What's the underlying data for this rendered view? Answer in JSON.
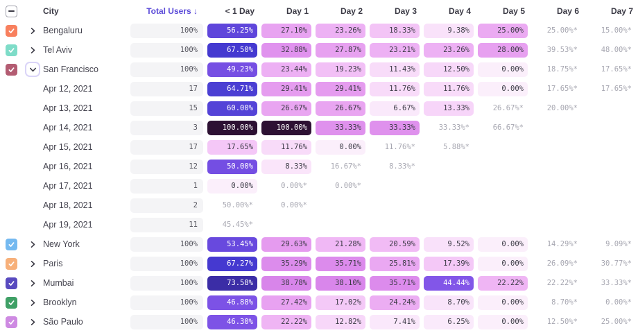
{
  "header": {
    "city": "City",
    "total_users": "Total Users ↓",
    "days": [
      "< 1 Day",
      "Day 1",
      "Day 2",
      "Day 3",
      "Day 4",
      "Day 5",
      "Day 6",
      "Day 7"
    ]
  },
  "colors": {
    "header_accent": "#5A4AD8",
    "star_text": "#A7A7B1",
    "total_box_bg": "#F4F4F6"
  },
  "rows": [
    {
      "id": "bengaluru",
      "kind": "city",
      "label": "Bengaluru",
      "checkbox": "#F8805E",
      "chevron": "right",
      "total": "100%",
      "cells": [
        {
          "v": "56.25%",
          "bg": "#5F46DB",
          "fg": "#FFFFFF"
        },
        {
          "v": "27.10%",
          "bg": "#E8A3F1"
        },
        {
          "v": "23.26%",
          "bg": "#EDB1F4"
        },
        {
          "v": "18.33%",
          "bg": "#F3C4F6"
        },
        {
          "v": "9.38%",
          "bg": "#F9E2FA"
        },
        {
          "v": "25.00%",
          "bg": "#EBAAF2"
        },
        {
          "v": "25.00%*",
          "star": true
        },
        {
          "v": "15.00%*",
          "star": true
        }
      ]
    },
    {
      "id": "tel-aviv",
      "kind": "city",
      "label": "Tel Aviv",
      "checkbox": "#7EDCC8",
      "chevron": "right",
      "total": "100%",
      "cells": [
        {
          "v": "67.50%",
          "bg": "#4439D0",
          "fg": "#FFFFFF"
        },
        {
          "v": "32.88%",
          "bg": "#E092EE"
        },
        {
          "v": "27.87%",
          "bg": "#E7A1F0"
        },
        {
          "v": "23.21%",
          "bg": "#EDB1F4"
        },
        {
          "v": "23.26%",
          "bg": "#EDB1F4"
        },
        {
          "v": "28.00%",
          "bg": "#E7A0F0"
        },
        {
          "v": "39.53%*",
          "star": true
        },
        {
          "v": "48.00%*",
          "star": true
        }
      ]
    },
    {
      "id": "san-francisco",
      "kind": "city",
      "label": "San Francisco",
      "checkbox": "#B35C72",
      "chevron": "down",
      "focus": true,
      "total": "100%",
      "cells": [
        {
          "v": "49.23%",
          "bg": "#764FE3",
          "fg": "#FFFFFF"
        },
        {
          "v": "23.44%",
          "bg": "#EDB0F4"
        },
        {
          "v": "19.23%",
          "bg": "#F2C0F6"
        },
        {
          "v": "11.43%",
          "bg": "#F8DCF9"
        },
        {
          "v": "12.50%",
          "bg": "#F7D8F9"
        },
        {
          "v": "0.00%",
          "bg": "#FBEFFB"
        },
        {
          "v": "18.75%*",
          "star": true
        },
        {
          "v": "17.65%*",
          "star": true
        }
      ]
    },
    {
      "id": "apr-12-2021",
      "kind": "date",
      "label": "Apr 12, 2021",
      "total": "17",
      "cells": [
        {
          "v": "64.71%",
          "bg": "#4B3FD3",
          "fg": "#FFFFFF"
        },
        {
          "v": "29.41%",
          "bg": "#E59CEF"
        },
        {
          "v": "29.41%",
          "bg": "#E59CEF"
        },
        {
          "v": "11.76%",
          "bg": "#F8DBF9"
        },
        {
          "v": "11.76%",
          "bg": "#F8DBF9"
        },
        {
          "v": "0.00%",
          "bg": "#FBEFFB"
        },
        {
          "v": "17.65%*",
          "star": true
        },
        {
          "v": "17.65%*",
          "star": true
        }
      ]
    },
    {
      "id": "apr-13-2021",
      "kind": "date",
      "label": "Apr 13, 2021",
      "total": "15",
      "cells": [
        {
          "v": "60.00%",
          "bg": "#5443D7",
          "fg": "#FFFFFF"
        },
        {
          "v": "26.67%",
          "bg": "#E9A5F1"
        },
        {
          "v": "26.67%",
          "bg": "#E9A5F1"
        },
        {
          "v": "6.67%",
          "bg": "#FAE9FB"
        },
        {
          "v": "13.33%",
          "bg": "#F7D5F9"
        },
        {
          "v": "26.67%*",
          "star": true
        },
        {
          "v": "20.00%*",
          "star": true
        },
        null
      ]
    },
    {
      "id": "apr-14-2021",
      "kind": "date",
      "label": "Apr 14, 2021",
      "total": "3",
      "cells": [
        {
          "v": "100.00%",
          "bg": "#2D1133",
          "fg": "#FFFFFF"
        },
        {
          "v": "100.00%",
          "bg": "#2D1133",
          "fg": "#FFFFFF"
        },
        {
          "v": "33.33%",
          "bg": "#DF91ED"
        },
        {
          "v": "33.33%",
          "bg": "#DF91ED"
        },
        {
          "v": "33.33%*",
          "star": true
        },
        {
          "v": "66.67%*",
          "star": true
        },
        null,
        null
      ]
    },
    {
      "id": "apr-15-2021",
      "kind": "date",
      "label": "Apr 15, 2021",
      "total": "17",
      "cells": [
        {
          "v": "17.65%",
          "bg": "#F4C7F7"
        },
        {
          "v": "11.76%",
          "bg": "#F8DBF9"
        },
        {
          "v": "0.00%",
          "bg": "#FBEFFB"
        },
        {
          "v": "11.76%*",
          "star": true
        },
        {
          "v": "5.88%*",
          "star": true
        },
        null,
        null,
        null
      ]
    },
    {
      "id": "apr-16-2021",
      "kind": "date",
      "label": "Apr 16, 2021",
      "total": "12",
      "cells": [
        {
          "v": "50.00%",
          "bg": "#744EE3",
          "fg": "#FFFFFF"
        },
        {
          "v": "8.33%",
          "bg": "#FAE5FA"
        },
        {
          "v": "16.67%*",
          "star": true
        },
        {
          "v": "8.33%*",
          "star": true
        },
        null,
        null,
        null,
        null
      ]
    },
    {
      "id": "apr-17-2021",
      "kind": "date",
      "label": "Apr 17, 2021",
      "total": "1",
      "cells": [
        {
          "v": "0.00%",
          "bg": "#FBEFFB"
        },
        {
          "v": "0.00%*",
          "star": true
        },
        {
          "v": "0.00%*",
          "star": true
        },
        null,
        null,
        null,
        null,
        null
      ]
    },
    {
      "id": "apr-18-2021",
      "kind": "date",
      "label": "Apr 18, 2021",
      "total": "2",
      "cells": [
        {
          "v": "50.00%*",
          "star": true
        },
        {
          "v": "0.00%*",
          "star": true
        },
        null,
        null,
        null,
        null,
        null,
        null
      ]
    },
    {
      "id": "apr-19-2021",
      "kind": "date",
      "label": "Apr 19, 2021",
      "total": "11",
      "cells": [
        {
          "v": "45.45%*",
          "star": true
        },
        null,
        null,
        null,
        null,
        null,
        null,
        null
      ]
    },
    {
      "id": "new-york",
      "kind": "city",
      "label": "New York",
      "checkbox": "#74B9F0",
      "chevron": "right",
      "total": "100%",
      "cells": [
        {
          "v": "53.45%",
          "bg": "#6849DE",
          "fg": "#FFFFFF"
        },
        {
          "v": "29.63%",
          "bg": "#E59BEF"
        },
        {
          "v": "21.28%",
          "bg": "#F0B8F5"
        },
        {
          "v": "20.59%",
          "bg": "#F1BBF5"
        },
        {
          "v": "9.52%",
          "bg": "#F9E1FA"
        },
        {
          "v": "0.00%",
          "bg": "#FBEFFB"
        },
        {
          "v": "14.29%*",
          "star": true
        },
        {
          "v": "9.09%*",
          "star": true
        }
      ]
    },
    {
      "id": "paris",
      "kind": "city",
      "label": "Paris",
      "checkbox": "#F7B07A",
      "chevron": "right",
      "total": "100%",
      "cells": [
        {
          "v": "67.27%",
          "bg": "#4539D0",
          "fg": "#FFFFFF"
        },
        {
          "v": "35.29%",
          "bg": "#DC8CEC"
        },
        {
          "v": "35.71%",
          "bg": "#DC8BEC"
        },
        {
          "v": "25.81%",
          "bg": "#EAA8F2"
        },
        {
          "v": "17.39%",
          "bg": "#F4C8F7"
        },
        {
          "v": "0.00%",
          "bg": "#FBEFFB"
        },
        {
          "v": "26.09%*",
          "star": true
        },
        {
          "v": "30.77%*",
          "star": true
        }
      ]
    },
    {
      "id": "mumbai",
      "kind": "city",
      "label": "Mumbai",
      "checkbox": "#584ABF",
      "chevron": "right",
      "total": "100%",
      "cells": [
        {
          "v": "73.58%",
          "bg": "#3B2DA6",
          "fg": "#FFFFFF"
        },
        {
          "v": "38.78%",
          "bg": "#D885EA"
        },
        {
          "v": "38.10%",
          "bg": "#D986EB"
        },
        {
          "v": "35.71%",
          "bg": "#DC8BEC"
        },
        {
          "v": "44.44%",
          "bg": "#8256E8",
          "fg": "#FFFFFF"
        },
        {
          "v": "22.22%",
          "bg": "#EFB5F4"
        },
        {
          "v": "22.22%*",
          "star": true
        },
        {
          "v": "33.33%*",
          "star": true
        }
      ]
    },
    {
      "id": "brooklyn",
      "kind": "city",
      "label": "Brooklyn",
      "checkbox": "#3FA066",
      "chevron": "right",
      "total": "100%",
      "cells": [
        {
          "v": "46.88%",
          "bg": "#7C52E6",
          "fg": "#FFFFFF"
        },
        {
          "v": "27.42%",
          "bg": "#E8A2F1"
        },
        {
          "v": "17.02%",
          "bg": "#F4C9F7"
        },
        {
          "v": "24.24%",
          "bg": "#ECADF3"
        },
        {
          "v": "8.70%",
          "bg": "#F9E4FA"
        },
        {
          "v": "0.00%",
          "bg": "#FBEFFB"
        },
        {
          "v": "8.70%*",
          "star": true
        },
        {
          "v": "0.00%*",
          "star": true
        }
      ]
    },
    {
      "id": "sao-paulo",
      "kind": "city",
      "label": "São Paulo",
      "checkbox": "#CE8AE2",
      "chevron": "right",
      "total": "100%",
      "cells": [
        {
          "v": "46.30%",
          "bg": "#7D53E6",
          "fg": "#FFFFFF"
        },
        {
          "v": "22.22%",
          "bg": "#EFB5F4"
        },
        {
          "v": "12.82%",
          "bg": "#F7D7F9"
        },
        {
          "v": "7.41%",
          "bg": "#FAE8FB"
        },
        {
          "v": "6.25%",
          "bg": "#FAEAFB"
        },
        {
          "v": "0.00%",
          "bg": "#FBEFFB"
        },
        {
          "v": "12.50%*",
          "star": true
        },
        {
          "v": "25.00%*",
          "star": true
        }
      ]
    }
  ]
}
